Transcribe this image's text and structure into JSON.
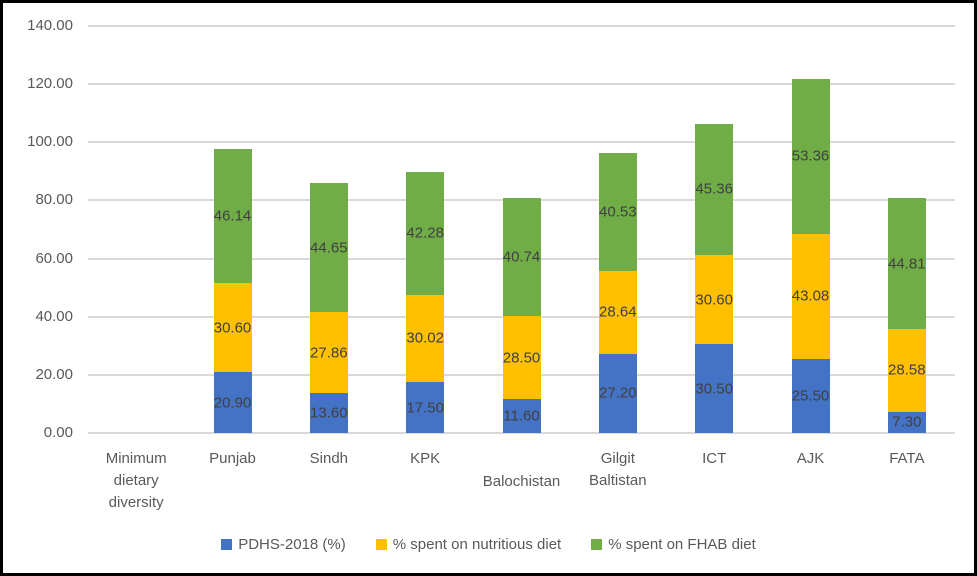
{
  "chart_data": {
    "type": "bar",
    "stacked": true,
    "title": "",
    "xlabel": "",
    "ylabel": "",
    "categories": [
      "Minimum dietary diversity",
      "Punjab",
      "Sindh",
      "KPK",
      "Balochistan",
      "Gilgit Baltistan",
      "ICT",
      "AJK",
      "FATA"
    ],
    "category_label_lines": [
      [
        "Minimum",
        "dietary",
        "diversity"
      ],
      [
        "Punjab"
      ],
      [
        "Sindh"
      ],
      [
        "KPK"
      ],
      [
        "Balochistan"
      ],
      [
        "Gilgit",
        "Baltistan"
      ],
      [
        "ICT"
      ],
      [
        "AJK"
      ],
      [
        "FATA"
      ]
    ],
    "category_label_stagger_row": [
      0,
      0,
      0,
      0,
      1,
      0,
      0,
      0,
      0
    ],
    "series": [
      {
        "name": "PDHS-2018 (%)",
        "color": "#4472c4",
        "values": [
          null,
          20.9,
          13.6,
          17.5,
          11.6,
          27.2,
          30.5,
          25.5,
          7.3
        ]
      },
      {
        "name": "% spent on nutritious diet",
        "color": "#ffc000",
        "values": [
          null,
          30.6,
          27.86,
          30.02,
          28.5,
          28.64,
          30.6,
          43.08,
          28.58
        ]
      },
      {
        "name": "% spent on FHAB diet",
        "color": "#70ad47",
        "values": [
          null,
          46.14,
          44.65,
          42.28,
          40.74,
          40.53,
          45.36,
          53.36,
          44.81
        ]
      }
    ],
    "y_ticks": [
      "0.00",
      "20.00",
      "40.00",
      "60.00",
      "80.00",
      "100.00",
      "120.00",
      "140.00"
    ],
    "ylim": [
      0,
      140
    ],
    "y_step": 20,
    "grid": true,
    "legend_position": "bottom",
    "data_label_decimals": 2,
    "grid_color": "#d9d9d9",
    "tick_color": "#595959",
    "data_label_color": "#404040",
    "border_color": "#000000",
    "background_color": "#ffffff"
  }
}
